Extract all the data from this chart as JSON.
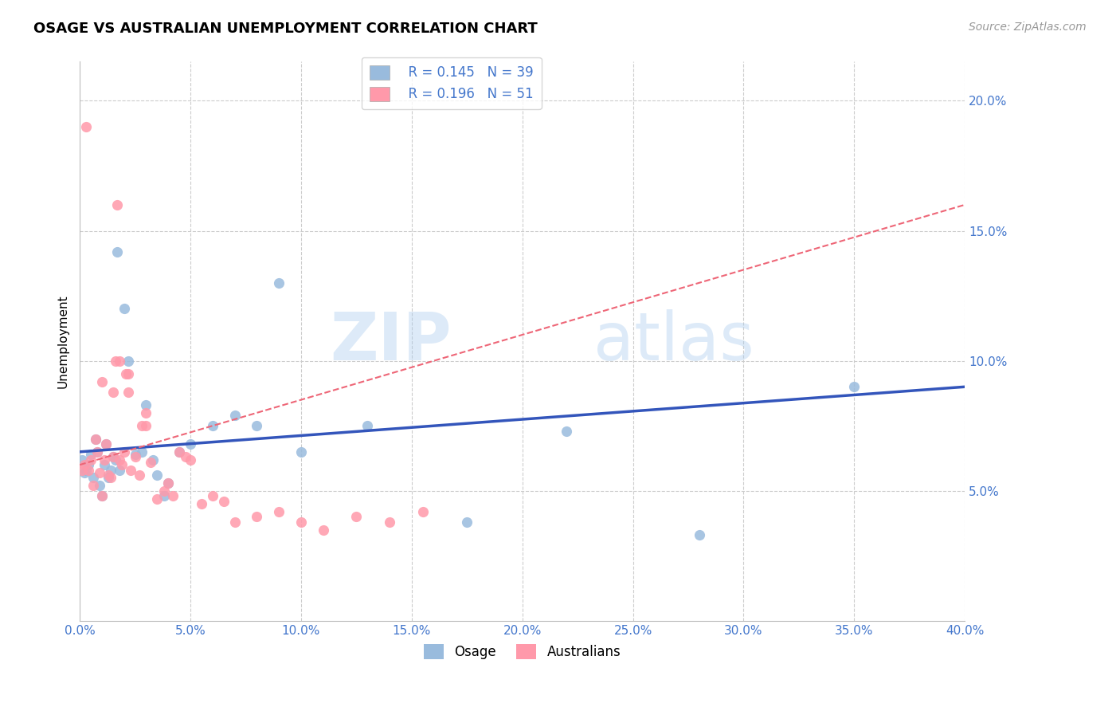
{
  "title": "OSAGE VS AUSTRALIAN UNEMPLOYMENT CORRELATION CHART",
  "source": "Source: ZipAtlas.com",
  "ylabel": "Unemployment",
  "yticks": [
    0.0,
    0.05,
    0.1,
    0.15,
    0.2
  ],
  "ytick_labels": [
    "",
    "5.0%",
    "10.0%",
    "15.0%",
    "20.0%"
  ],
  "xticks": [
    0.0,
    0.05,
    0.1,
    0.15,
    0.2,
    0.25,
    0.3,
    0.35,
    0.4
  ],
  "xmin": 0.0,
  "xmax": 0.4,
  "ymin": 0.0,
  "ymax": 0.215,
  "watermark_zip": "ZIP",
  "watermark_atlas": "atlas",
  "legend_r1": "R = 0.145",
  "legend_n1": "N = 39",
  "legend_r2": "R = 0.196",
  "legend_n2": "N = 51",
  "color_blue": "#99BBDD",
  "color_pink": "#FF99AA",
  "color_blue_dark": "#3355BB",
  "color_pink_dark": "#EE6677",
  "color_axis_label": "#4477CC",
  "osage_x": [
    0.001,
    0.002,
    0.003,
    0.004,
    0.005,
    0.006,
    0.007,
    0.008,
    0.009,
    0.01,
    0.011,
    0.012,
    0.013,
    0.014,
    0.015,
    0.016,
    0.017,
    0.018,
    0.02,
    0.022,
    0.025,
    0.028,
    0.03,
    0.033,
    0.035,
    0.038,
    0.04,
    0.045,
    0.05,
    0.06,
    0.07,
    0.08,
    0.09,
    0.1,
    0.13,
    0.175,
    0.22,
    0.28,
    0.35
  ],
  "osage_y": [
    0.062,
    0.057,
    0.058,
    0.06,
    0.064,
    0.055,
    0.07,
    0.065,
    0.052,
    0.048,
    0.06,
    0.068,
    0.055,
    0.058,
    0.063,
    0.062,
    0.142,
    0.058,
    0.12,
    0.1,
    0.064,
    0.065,
    0.083,
    0.062,
    0.056,
    0.048,
    0.053,
    0.065,
    0.068,
    0.075,
    0.079,
    0.075,
    0.13,
    0.065,
    0.075,
    0.038,
    0.073,
    0.033,
    0.09
  ],
  "australians_x": [
    0.001,
    0.002,
    0.003,
    0.004,
    0.005,
    0.006,
    0.007,
    0.008,
    0.009,
    0.01,
    0.011,
    0.012,
    0.013,
    0.014,
    0.015,
    0.016,
    0.017,
    0.018,
    0.019,
    0.02,
    0.021,
    0.022,
    0.023,
    0.025,
    0.027,
    0.03,
    0.032,
    0.035,
    0.038,
    0.04,
    0.042,
    0.045,
    0.048,
    0.05,
    0.055,
    0.06,
    0.065,
    0.07,
    0.08,
    0.09,
    0.1,
    0.11,
    0.125,
    0.14,
    0.155,
    0.03,
    0.028,
    0.022,
    0.018,
    0.015,
    0.01
  ],
  "australians_y": [
    0.058,
    0.06,
    0.19,
    0.058,
    0.062,
    0.052,
    0.07,
    0.065,
    0.057,
    0.048,
    0.062,
    0.068,
    0.056,
    0.055,
    0.063,
    0.1,
    0.16,
    0.062,
    0.06,
    0.065,
    0.095,
    0.088,
    0.058,
    0.063,
    0.056,
    0.075,
    0.061,
    0.047,
    0.05,
    0.053,
    0.048,
    0.065,
    0.063,
    0.062,
    0.045,
    0.048,
    0.046,
    0.038,
    0.04,
    0.042,
    0.038,
    0.035,
    0.04,
    0.038,
    0.042,
    0.08,
    0.075,
    0.095,
    0.1,
    0.088,
    0.092
  ],
  "blue_line_x0": 0.0,
  "blue_line_y0": 0.065,
  "blue_line_x1": 0.4,
  "blue_line_y1": 0.09,
  "pink_line_x0": 0.0,
  "pink_line_y0": 0.06,
  "pink_line_x1": 0.14,
  "pink_line_y1": 0.095
}
